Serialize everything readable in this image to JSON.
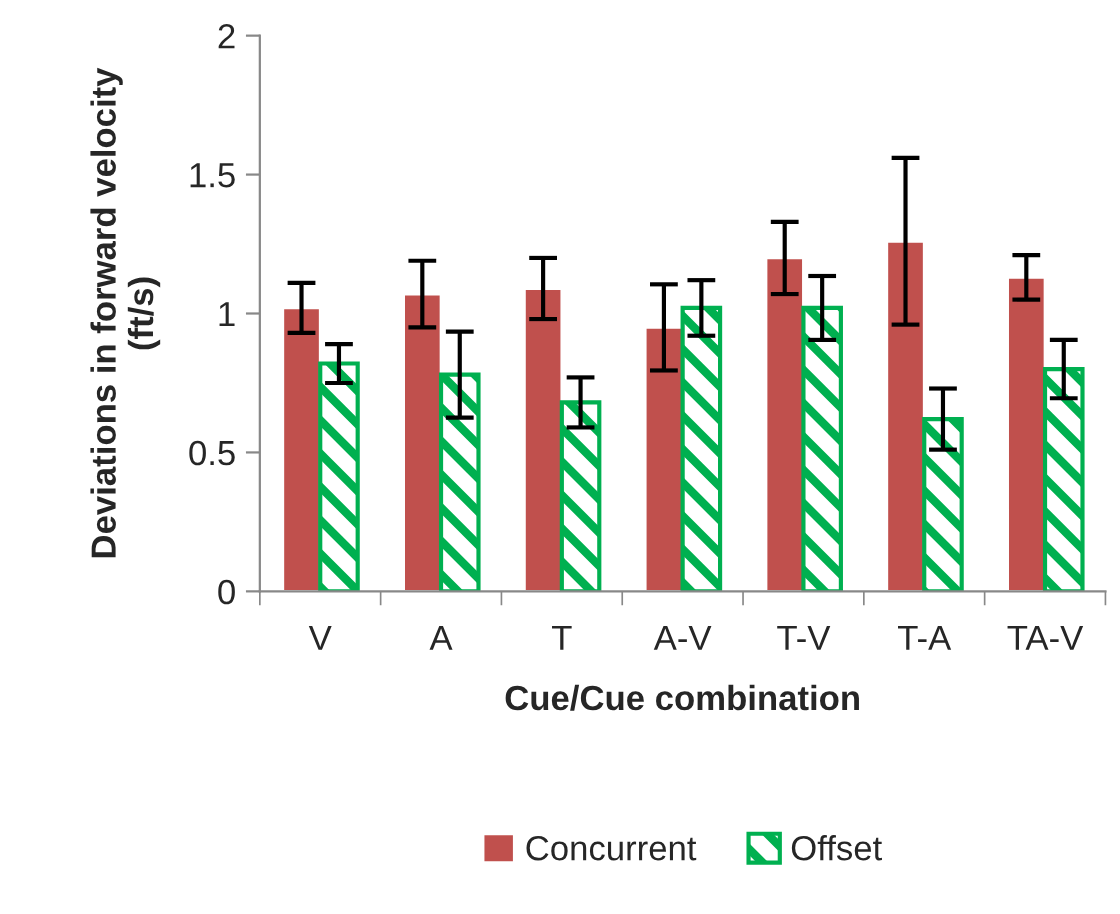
{
  "chart_data": {
    "type": "bar",
    "xlabel": "Cue/Cue combination",
    "ylabel": "Deviations in forward velocity\n(ft/s)",
    "categories": [
      "V",
      "A",
      "T",
      "A-V",
      "T-V",
      "T-A",
      "TA-V"
    ],
    "series": [
      {
        "name": "Concurrent",
        "color": "#c0504d",
        "values": [
          1.02,
          1.07,
          1.09,
          0.95,
          1.2,
          1.26,
          1.13
        ],
        "errors": [
          0.09,
          0.12,
          0.11,
          0.155,
          0.13,
          0.3,
          0.08
        ]
      },
      {
        "name": "Offset",
        "color": "#00b050",
        "values": [
          0.82,
          0.78,
          0.68,
          1.02,
          1.02,
          0.62,
          0.8
        ],
        "errors": [
          0.07,
          0.155,
          0.09,
          0.1,
          0.115,
          0.11,
          0.105
        ]
      }
    ],
    "ylim": [
      0,
      2
    ],
    "yticks": [
      0,
      0.5,
      1,
      1.5,
      2
    ],
    "grid": false,
    "legend": "bottom"
  }
}
